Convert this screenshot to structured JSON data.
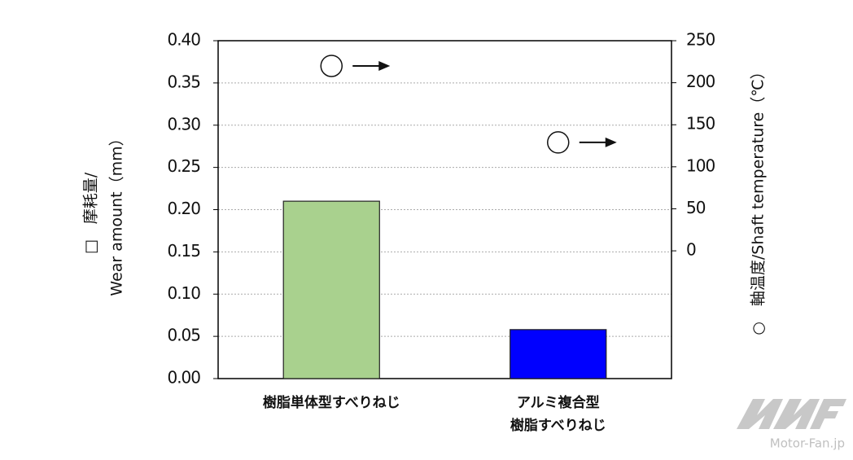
{
  "chart_data": {
    "type": "bar",
    "categories": [
      "樹脂単体型すべりねじ",
      "アルミ複合型\n樹脂すべりねじ"
    ],
    "series": [
      {
        "values": [
          0.21,
          0.058
        ],
        "colors": [
          "#a9d18e",
          "#0000ff"
        ]
      },
      {
        "axis": "y2",
        "marker": "circle",
        "color": "#ffffff",
        "values": [
          220,
          129
        ]
      }
    ],
    "ylim": [
      0,
      0.4
    ],
    "yticks": [
      {
        "value": 0,
        "label": "0.00"
      },
      0.05,
      {
        "value": 0.1,
        "label": "0.10"
      },
      0.15,
      {
        "value": 0.2,
        "label": "0.20"
      },
      0.25,
      {
        "value": 0.3,
        "label": "0.30"
      },
      0.35,
      {
        "value": 0.4,
        "label": "0.40"
      }
    ],
    "y2lim": [
      -152,
      250
    ],
    "y2ticks": [
      0,
      50,
      100,
      150,
      200,
      250
    ],
    "ylabel": [
      "□　摩耗量/",
      "Wear amount（mm）"
    ],
    "y2label": "○　軸温度/Shaft temperature（℃）",
    "grid": true,
    "watermark": "Motor-Fan.jp"
  }
}
